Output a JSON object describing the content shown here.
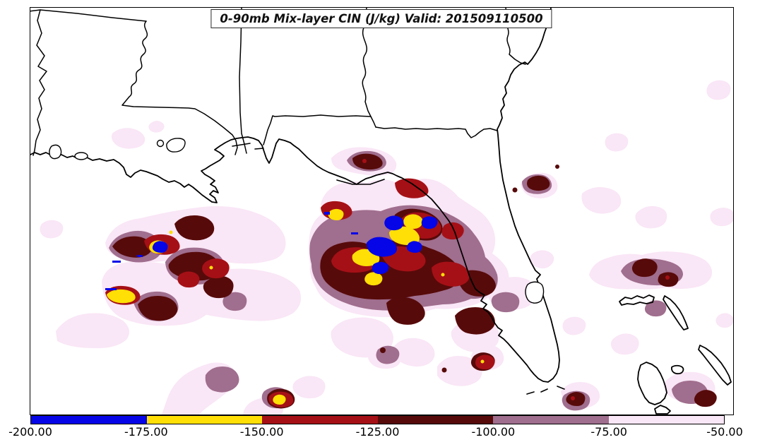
{
  "figure": {
    "title": "0-90mb Mix-layer CIN (J/kg) Valid: 201509110500"
  },
  "palette": {
    "blue": "#0505e8",
    "yellow": "#ffdf05",
    "red": "#a51016",
    "dark_maroon": "#570a0a",
    "mauve": "#a06e8e",
    "light_pink": "#f9e6f6",
    "coast": "#000000",
    "background": "#ffffff"
  },
  "colorbar": {
    "ticks": [
      "-200.00",
      "-175.00",
      "-150.00",
      "-125.00",
      "-100.00",
      "-75.00",
      "-50.00"
    ],
    "segments": [
      {
        "range": "-200 to -175",
        "color": "#0505e8"
      },
      {
        "range": "-175 to -150",
        "color": "#ffdf05"
      },
      {
        "range": "-150 to -125",
        "color": "#a51016"
      },
      {
        "range": "-125 to -100",
        "color": "#570a0a"
      },
      {
        "range": "-100 to -75",
        "color": "#a06e8e"
      },
      {
        "range": "-75 to -50",
        "color": "#f9e6f6"
      }
    ]
  },
  "chart_data": {
    "type": "heatmap",
    "title": "0-90mb Mix-layer CIN (J/kg) Valid: 201509110500",
    "variable": "0-90mb Mix-layer CIN",
    "units": "J/kg",
    "valid": "201509110500",
    "levels": [
      -200,
      -175,
      -150,
      -125,
      -100,
      -75,
      -50
    ],
    "level_colors": [
      "#0505e8",
      "#ffdf05",
      "#a51016",
      "#570a0a",
      "#a06e8e",
      "#f9e6f6"
    ],
    "tick_labels": [
      "-200.00",
      "-175.00",
      "-150.00",
      "-125.00",
      "-100.00",
      "-75.00",
      "-50.00"
    ],
    "legend_position": "bottom",
    "grid": false,
    "region": "Southeastern US Gulf Coast, Florida, Gulf of Mexico, northwestern Bahamas",
    "notes": "Strongest CIN cores (blue/yellow inside dark red rings) lie offshore south of Louisiana and over the northeastern Gulf south of the Florida Big Bend; weak CIN (pale pink) is widespread over the Gulf and Atlantic waters."
  }
}
